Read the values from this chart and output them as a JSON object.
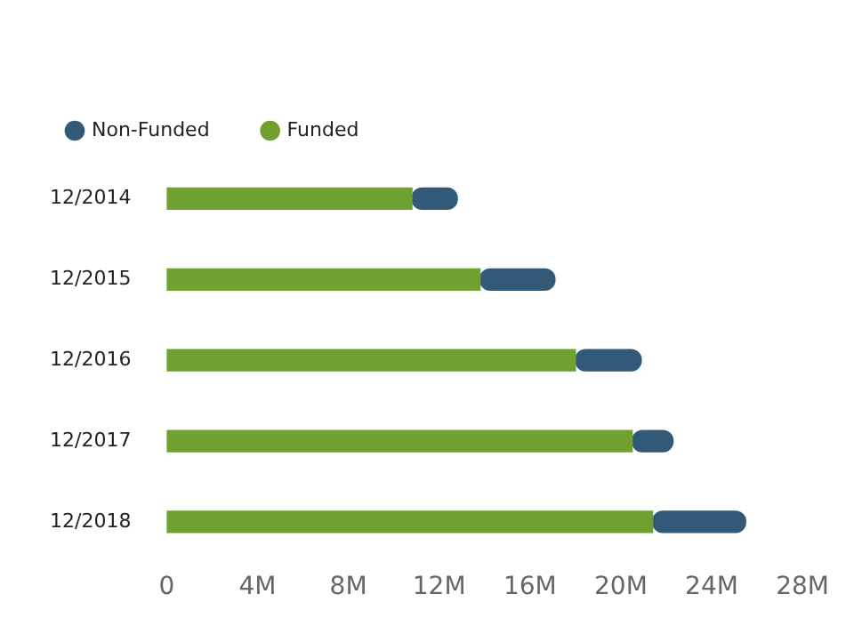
{
  "chart_data": {
    "type": "bar",
    "orientation": "horizontal",
    "stacked": true,
    "legend": "top left",
    "grid": false,
    "categories": [
      "12/2014",
      "12/2015",
      "12/2016",
      "12/2017",
      "12/2018"
    ],
    "series": [
      {
        "name": "Funded",
        "color": "#70a030",
        "values": [
          10.8,
          13.8,
          18.0,
          20.5,
          21.4
        ]
      },
      {
        "name": "Non-Funded",
        "color": "#325a78",
        "values": [
          2.0,
          3.3,
          2.9,
          1.8,
          4.1
        ]
      }
    ],
    "xlim": [
      0,
      28
    ],
    "xticks": [
      {
        "value": 0,
        "label": "0"
      },
      {
        "value": 4,
        "label": "4M"
      },
      {
        "value": 8,
        "label": "8M"
      },
      {
        "value": 12,
        "label": "12M"
      },
      {
        "value": 16,
        "label": "16M"
      },
      {
        "value": 20,
        "label": "20M"
      },
      {
        "value": 24,
        "label": "24M"
      },
      {
        "value": 28,
        "label": "28M"
      }
    ]
  }
}
